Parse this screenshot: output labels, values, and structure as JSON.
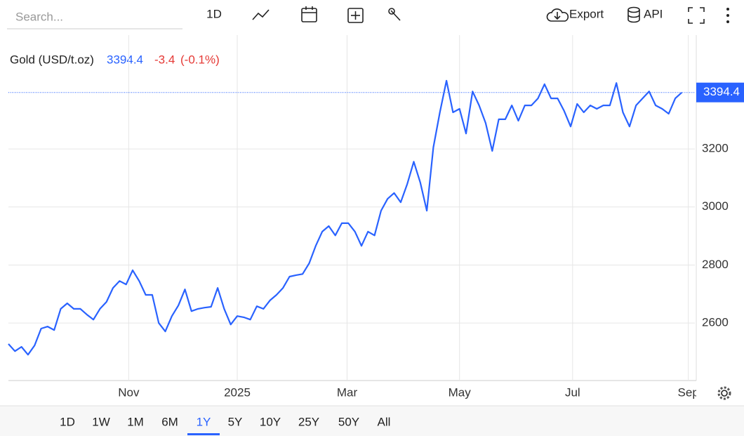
{
  "toolbar": {
    "search_placeholder": "Search...",
    "interval": "1D",
    "export": "Export",
    "api": "API"
  },
  "ranges": [
    "1D",
    "1W",
    "1M",
    "6M",
    "1Y",
    "5Y",
    "10Y",
    "25Y",
    "50Y",
    "All"
  ],
  "selected_range": "1Y",
  "chart_data": {
    "type": "line",
    "title": "Gold (USD/t.oz)",
    "last_price": 3394.4,
    "change": -3.4,
    "change_pct": {
      "value": -0.1,
      "label": "(-0.1%)"
    },
    "color": "#2962ff",
    "change_color": "#e53935",
    "values": [
      2528,
      2503,
      2518,
      2491,
      2523,
      2581,
      2588,
      2576,
      2649,
      2668,
      2649,
      2649,
      2629,
      2612,
      2649,
      2673,
      2721,
      2745,
      2733,
      2782,
      2745,
      2697,
      2697,
      2600,
      2571,
      2624,
      2661,
      2716,
      2641,
      2649,
      2653,
      2656,
      2721,
      2649,
      2595,
      2624,
      2620,
      2612,
      2658,
      2649,
      2678,
      2697,
      2721,
      2760,
      2765,
      2769,
      2806,
      2866,
      2915,
      2934,
      2902,
      2944,
      2944,
      2915,
      2866,
      2915,
      2902,
      2987,
      3028,
      3048,
      3016,
      3079,
      3156,
      3084,
      2987,
      3205,
      3326,
      3435,
      3326,
      3338,
      3253,
      3398,
      3350,
      3289,
      3193,
      3302,
      3302,
      3350,
      3297,
      3350,
      3350,
      3374,
      3423,
      3374,
      3374,
      3331,
      3277,
      3355,
      3326,
      3350,
      3338,
      3350,
      3350,
      3427,
      3326,
      3277,
      3350,
      3374,
      3398,
      3350,
      3338,
      3321,
      3374,
      3394.4
    ],
    "xlim": [
      0,
      105
    ],
    "xticks": [
      {
        "value": 18.4,
        "label": "Nov"
      },
      {
        "value": 35,
        "label": "2025"
      },
      {
        "value": 51.8,
        "label": "Mar"
      },
      {
        "value": 69,
        "label": "May"
      },
      {
        "value": 86.3,
        "label": "Jul"
      },
      {
        "value": 104,
        "label": "Sep"
      }
    ],
    "ylim": [
      2402,
      3592
    ],
    "yticks": [
      2600,
      2800,
      3000,
      3200
    ],
    "grid": true
  }
}
